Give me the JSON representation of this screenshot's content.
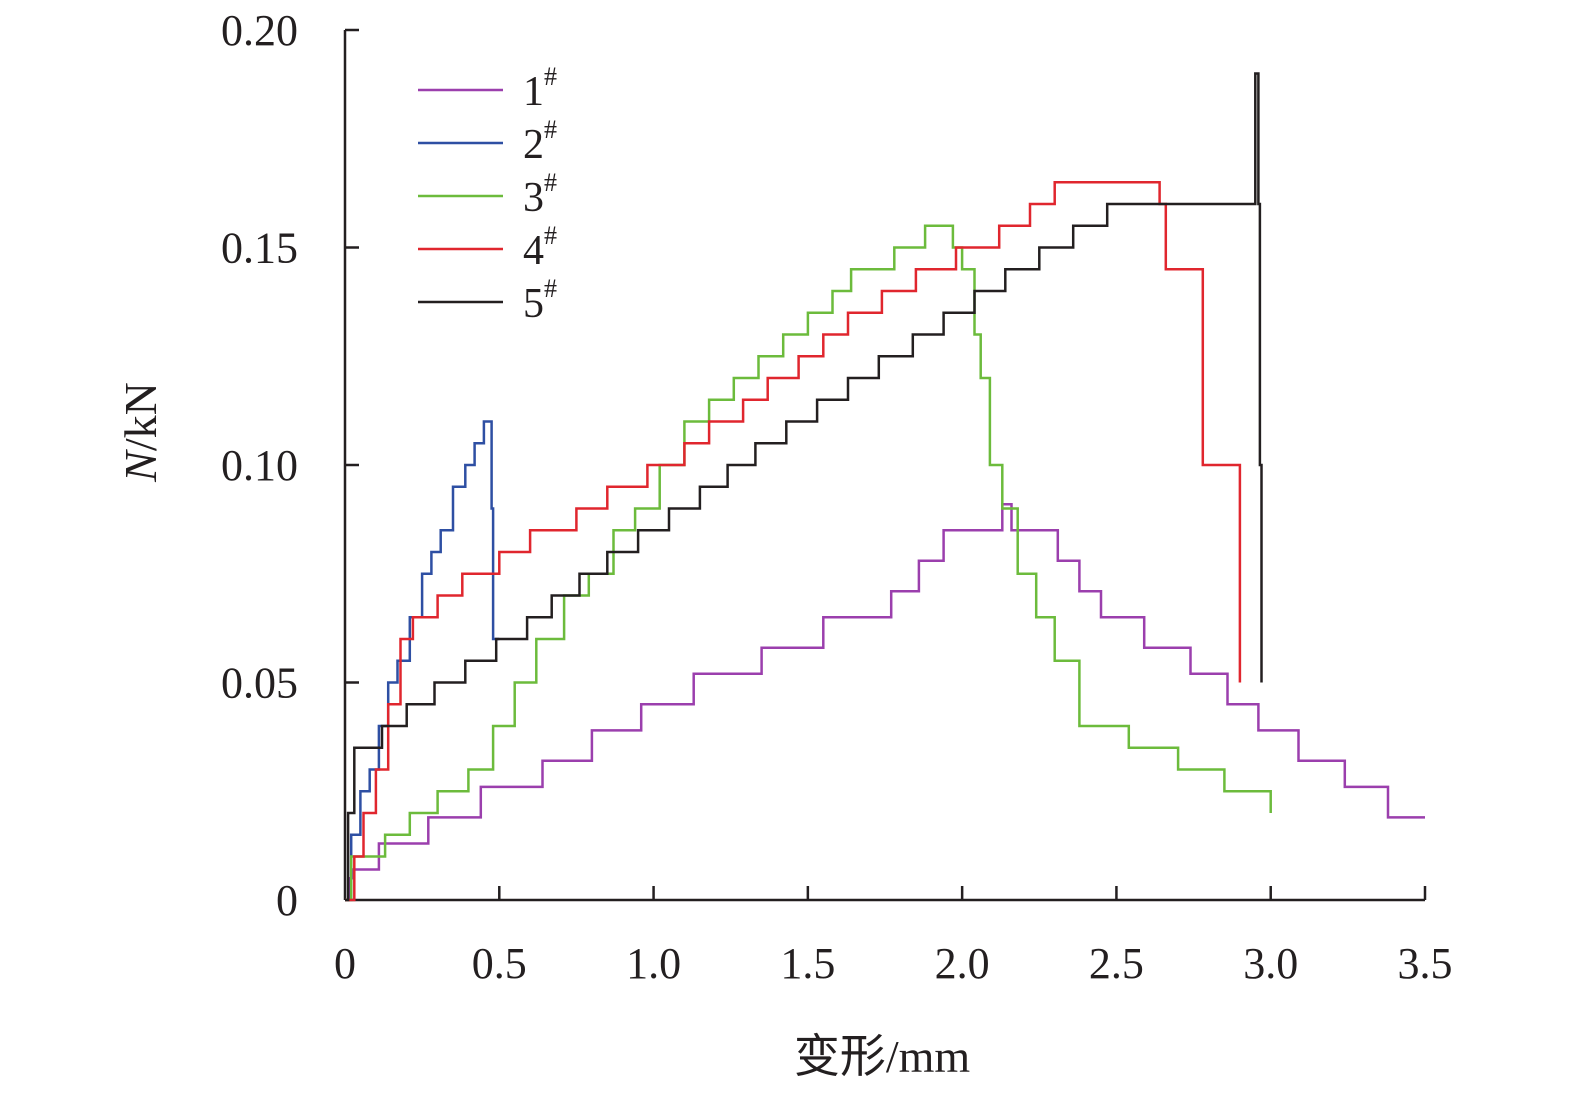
{
  "chart_data": {
    "type": "line",
    "xlabel": "变形/mm",
    "ylabel_var": "N",
    "ylabel_unit": "/kN",
    "xlim": [
      0,
      3.5
    ],
    "ylim": [
      0,
      0.2
    ],
    "x_ticks": [
      0,
      0.5,
      1.0,
      1.5,
      2.0,
      2.5,
      3.0,
      3.5
    ],
    "x_tick_labels": [
      "0",
      "0.5",
      "1.0",
      "1.5",
      "2.0",
      "2.5",
      "3.0",
      "3.5"
    ],
    "y_ticks": [
      0,
      0.05,
      0.1,
      0.15,
      0.2
    ],
    "y_tick_labels": [
      "0",
      "0.05",
      "0.10",
      "0.15",
      "0.20"
    ],
    "grid": false,
    "legend_position": "top-left",
    "series": [
      {
        "name": "1",
        "name_sup": "#",
        "color": "#9b3fad",
        "x": [
          0,
          0.015,
          0.025,
          0.045,
          0.11,
          0.19,
          0.27,
          0.34,
          0.44,
          0.52,
          0.64,
          0.72,
          0.8,
          0.88,
          0.96,
          1.05,
          1.13,
          1.22,
          1.35,
          1.47,
          1.55,
          1.66,
          1.77,
          1.86,
          1.94,
          2.03,
          2.1,
          2.13,
          2.16,
          2.24,
          2.31,
          2.38,
          2.45,
          2.59,
          2.74,
          2.86,
          2.96,
          3.09,
          3.24,
          3.38,
          3.5
        ],
        "y": [
          0,
          0.005,
          0.007,
          0.007,
          0.013,
          0.013,
          0.019,
          0.019,
          0.026,
          0.026,
          0.032,
          0.032,
          0.039,
          0.039,
          0.045,
          0.045,
          0.052,
          0.052,
          0.058,
          0.058,
          0.065,
          0.065,
          0.071,
          0.078,
          0.085,
          0.085,
          0.085,
          0.091,
          0.085,
          0.085,
          0.078,
          0.071,
          0.065,
          0.058,
          0.052,
          0.045,
          0.039,
          0.032,
          0.026,
          0.019,
          0.019
        ]
      },
      {
        "name": "2",
        "name_sup": "#",
        "color": "#2e4fa3",
        "x": [
          0,
          0.02,
          0.05,
          0.08,
          0.11,
          0.14,
          0.17,
          0.21,
          0.25,
          0.28,
          0.31,
          0.35,
          0.39,
          0.42,
          0.45,
          0.46,
          0.475,
          0.48,
          0.5
        ],
        "y": [
          0,
          0.015,
          0.025,
          0.03,
          0.04,
          0.05,
          0.055,
          0.065,
          0.075,
          0.08,
          0.085,
          0.095,
          0.1,
          0.105,
          0.11,
          0.11,
          0.09,
          0.06,
          0.06
        ]
      },
      {
        "name": "3",
        "name_sup": "#",
        "color": "#6cbb3c",
        "x": [
          0,
          0.02,
          0.06,
          0.13,
          0.21,
          0.3,
          0.4,
          0.48,
          0.55,
          0.62,
          0.71,
          0.79,
          0.87,
          0.94,
          1.02,
          1.1,
          1.18,
          1.26,
          1.34,
          1.42,
          1.5,
          1.58,
          1.64,
          1.7,
          1.78,
          1.88,
          1.93,
          1.97,
          2.0,
          2.04,
          2.06,
          2.09,
          2.13,
          2.18,
          2.24,
          2.3,
          2.38,
          2.54,
          2.7,
          2.85,
          3.0
        ],
        "y": [
          0,
          0.01,
          0.01,
          0.015,
          0.02,
          0.025,
          0.03,
          0.04,
          0.05,
          0.06,
          0.07,
          0.075,
          0.085,
          0.09,
          0.1,
          0.11,
          0.115,
          0.12,
          0.125,
          0.13,
          0.135,
          0.14,
          0.145,
          0.145,
          0.15,
          0.155,
          0.155,
          0.15,
          0.145,
          0.13,
          0.12,
          0.1,
          0.09,
          0.075,
          0.065,
          0.055,
          0.04,
          0.035,
          0.03,
          0.025,
          0.02
        ]
      },
      {
        "name": "4",
        "name_sup": "#",
        "color": "#e0262e",
        "x": [
          0,
          0.03,
          0.06,
          0.1,
          0.14,
          0.18,
          0.22,
          0.3,
          0.38,
          0.5,
          0.6,
          0.75,
          0.85,
          0.98,
          1.1,
          1.18,
          1.29,
          1.37,
          1.47,
          1.55,
          1.63,
          1.74,
          1.85,
          1.98,
          2.04,
          2.12,
          2.22,
          2.3,
          2.4,
          2.52,
          2.62,
          2.64,
          2.66,
          2.78,
          2.9
        ],
        "y": [
          0,
          0.01,
          0.02,
          0.03,
          0.045,
          0.06,
          0.065,
          0.07,
          0.075,
          0.08,
          0.085,
          0.09,
          0.095,
          0.1,
          0.105,
          0.11,
          0.115,
          0.12,
          0.125,
          0.13,
          0.135,
          0.14,
          0.145,
          0.15,
          0.15,
          0.155,
          0.16,
          0.165,
          0.165,
          0.165,
          0.165,
          0.16,
          0.145,
          0.1,
          0.05
        ]
      },
      {
        "name": "5",
        "name_sup": "#",
        "color": "#231f20",
        "x": [
          0,
          0.01,
          0.03,
          0.07,
          0.12,
          0.2,
          0.29,
          0.39,
          0.49,
          0.59,
          0.67,
          0.76,
          0.85,
          0.95,
          1.05,
          1.15,
          1.24,
          1.33,
          1.43,
          1.53,
          1.63,
          1.73,
          1.84,
          1.94,
          2.04,
          2.14,
          2.25,
          2.36,
          2.47,
          2.57,
          2.67,
          2.78,
          2.88,
          2.92,
          2.95,
          2.96,
          2.965,
          2.97
        ],
        "y": [
          0,
          0.02,
          0.035,
          0.035,
          0.04,
          0.045,
          0.05,
          0.055,
          0.06,
          0.065,
          0.07,
          0.075,
          0.08,
          0.085,
          0.09,
          0.095,
          0.1,
          0.105,
          0.11,
          0.115,
          0.12,
          0.125,
          0.13,
          0.135,
          0.14,
          0.145,
          0.15,
          0.155,
          0.16,
          0.16,
          0.16,
          0.16,
          0.16,
          0.16,
          0.19,
          0.16,
          0.1,
          0.05
        ]
      }
    ]
  }
}
